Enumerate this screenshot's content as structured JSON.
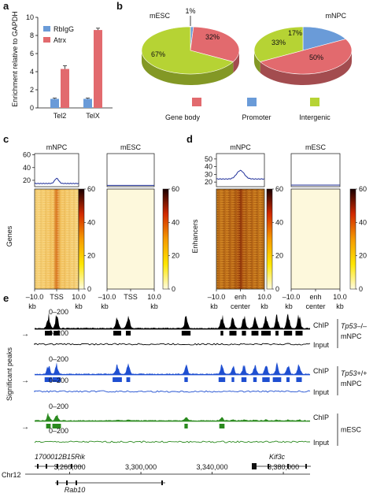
{
  "panel_labels": [
    "a",
    "b",
    "c",
    "d",
    "e"
  ],
  "chart_data": [
    {
      "panel": "a",
      "type": "bar",
      "ylabel": "Enrichment relative to GAPDH",
      "yticks": [
        0,
        2,
        4,
        6,
        8,
        10
      ],
      "ylim": [
        0,
        10
      ],
      "categories": [
        "Tel2",
        "TelX"
      ],
      "legend_position": "top-left",
      "series": [
        {
          "name": "RbIgG",
          "color": "#6a9bd8",
          "values": [
            1.0,
            1.0
          ],
          "errors": [
            0.08,
            0.08
          ]
        },
        {
          "name": "Atrx",
          "color": "#e26a6e",
          "values": [
            4.3,
            8.6
          ],
          "errors": [
            0.35,
            0.2
          ]
        }
      ]
    },
    {
      "panel": "b",
      "type": "pie",
      "pies": [
        {
          "title": "mESC",
          "slices": [
            {
              "category": "Promoter",
              "value": 1,
              "label": "1%"
            },
            {
              "category": "Gene body",
              "value": 32,
              "label": "32%"
            },
            {
              "category": "Intergenic",
              "value": 67,
              "label": "67%"
            }
          ]
        },
        {
          "title": "mNPC",
          "slices": [
            {
              "category": "Promoter",
              "value": 17,
              "label": "17%"
            },
            {
              "category": "Gene body",
              "value": 50,
              "label": "50%"
            },
            {
              "category": "Intergenic",
              "value": 33,
              "label": "33%"
            }
          ]
        }
      ],
      "legend": [
        {
          "name": "Gene body",
          "color": "#e26a6e"
        },
        {
          "name": "Promoter",
          "color": "#6a9bd8"
        },
        {
          "name": "Intergenic",
          "color": "#b6d334"
        }
      ]
    },
    {
      "panel": "c",
      "type": "heatmap",
      "ylabel": "Genes",
      "profile_yticks": [
        20,
        40,
        60
      ],
      "profile_ylim": [
        10,
        62
      ],
      "colorbar_ticks": [
        0,
        20,
        40,
        60
      ],
      "x_tick_labels": [
        "–10.0",
        "TSS",
        "10.0"
      ],
      "x_unit_labels": [
        "kb",
        "kb"
      ],
      "samples": [
        {
          "title": "mNPC",
          "peak": 23,
          "base": 15
        },
        {
          "title": "mESC",
          "peak": 12,
          "base": 12
        }
      ]
    },
    {
      "panel": "d",
      "type": "heatmap",
      "ylabel": "Enhancers",
      "profile_yticks": [
        20,
        30,
        40,
        50
      ],
      "profile_ylim": [
        14,
        57
      ],
      "colorbar_ticks": [
        0,
        20,
        40,
        60
      ],
      "x_tick_labels": [
        "–10.0",
        "enh",
        "10.0"
      ],
      "x_unit_labels": [
        "kb",
        "center",
        "kb"
      ],
      "samples": [
        {
          "title": "mNPC",
          "peak": 35,
          "base": 24
        },
        {
          "title": "mESC",
          "peak": 16,
          "base": 16
        }
      ]
    },
    {
      "panel": "e",
      "type": "area",
      "side_label": "Significant peaks",
      "track_range": "0–200",
      "chromosome": "Chr12",
      "coords": [
        3260000,
        3300000,
        3340000,
        3380000
      ],
      "coord_labels": [
        "3,260,000",
        "3,300,000",
        "3,340,000",
        "3,380,000"
      ],
      "genes": [
        "1700012B15Rik",
        "Kif3c",
        "Rab10"
      ],
      "groups": [
        {
          "label_parts": [
            "Tp53",
            "–/–",
            "mNPC"
          ],
          "color": "#000000",
          "tracks": [
            "ChIP",
            "Input"
          ]
        },
        {
          "label_parts": [
            "Tp53",
            "+/+",
            "mNPC"
          ],
          "color": "#1f4fd1",
          "tracks": [
            "ChIP",
            "Input"
          ]
        },
        {
          "label_parts": [
            "mESC"
          ],
          "color": "#2a8a1e",
          "tracks": [
            "ChIP",
            "Input"
          ]
        }
      ]
    }
  ]
}
